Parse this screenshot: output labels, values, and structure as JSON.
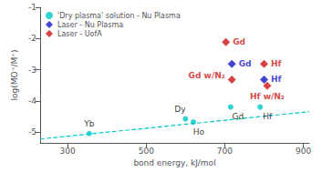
{
  "chart_data": {
    "type": "scatter",
    "xlabel": "bond energy, kJ/mol",
    "ylabel": "log(MO⁺/M⁺)",
    "xlim": [
      230,
      915
    ],
    "ylim": [
      -5.35,
      -1.0
    ],
    "xticks": [
      300,
      500,
      700,
      900
    ],
    "yticks": [
      -5,
      -4,
      -3,
      -2,
      -1
    ],
    "grid": false,
    "legend": "upper left",
    "series": [
      {
        "name": "'Dry plasma' solution - Nu Plasma",
        "color": "#00C8C8",
        "marker": "circle",
        "x": [
          355,
          600,
          620,
          715,
          790
        ],
        "values": [
          -5.05,
          -4.58,
          -4.68,
          -4.2,
          -4.2
        ],
        "labels": [
          "Yb",
          "Dy",
          "Ho",
          "Gd",
          "Hf"
        ]
      },
      {
        "name": "Laser - Nu Plasma",
        "color": "#1414CC",
        "marker": "diamond",
        "x": [
          718,
          800
        ],
        "values": [
          -2.82,
          -3.32
        ],
        "labels": [
          "Gd",
          "Hf"
        ]
      },
      {
        "name": "Laser - UofA",
        "color": "#CC1414",
        "marker": "diamond",
        "x": [
          703,
          718,
          800,
          808
        ],
        "values": [
          -2.12,
          -3.32,
          -2.82,
          -3.52
        ],
        "labels": [
          "Gd",
          "Gd w/N₂",
          "Hf",
          "Hf w/N₂"
        ]
      },
      {
        "type": "line",
        "color": "#00C8C8",
        "line_style": "dashed",
        "x": [
          230,
          915
        ],
        "values": [
          -5.2256,
          -4.3488
        ]
      }
    ]
  }
}
